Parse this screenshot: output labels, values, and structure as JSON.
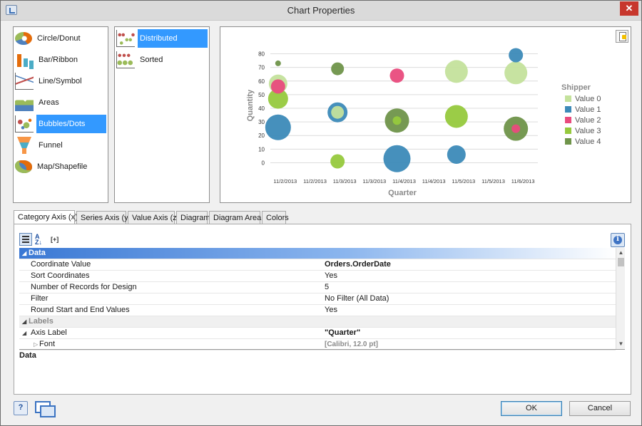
{
  "window": {
    "title": "Chart Properties"
  },
  "chart_types": [
    {
      "label": "Circle/Donut",
      "icon": "donut-chart-icon"
    },
    {
      "label": "Bar/Ribbon",
      "icon": "bar-chart-icon"
    },
    {
      "label": "Line/Symbol",
      "icon": "line-chart-icon"
    },
    {
      "label": "Areas",
      "icon": "area-chart-icon"
    },
    {
      "label": "Bubbles/Dots",
      "icon": "bubble-chart-icon",
      "selected": true
    },
    {
      "label": "Funnel",
      "icon": "funnel-chart-icon"
    },
    {
      "label": "Map/Shapefile",
      "icon": "map-icon"
    }
  ],
  "sub_types": [
    {
      "label": "Distributed",
      "icon": "distributed-dots-icon",
      "selected": true
    },
    {
      "label": "Sorted",
      "icon": "sorted-dots-icon"
    }
  ],
  "chart_data": {
    "type": "scatter",
    "subtype": "bubble",
    "xlabel": "Quarter",
    "ylabel": "Quantity",
    "x_tick_labels": [
      "11/2/2013",
      "11/2/2013",
      "11/3/2013",
      "11/3/2013",
      "11/4/2013",
      "11/4/2013",
      "11/5/2013",
      "11/5/2013",
      "11/6/2013"
    ],
    "y_ticks": [
      0,
      10,
      20,
      30,
      40,
      50,
      60,
      70,
      80
    ],
    "ylim": [
      -5,
      85
    ],
    "grid": true,
    "legend": {
      "title": "Shipper",
      "position": "right"
    },
    "series": [
      {
        "name": "Value 0",
        "color": "#c4e29c",
        "points": [
          {
            "x": 0,
            "y": 58,
            "size": 13
          },
          {
            "x": 2,
            "y": 37,
            "size": 9
          },
          {
            "x": 6,
            "y": 67,
            "size": 16
          },
          {
            "x": 8,
            "y": 66,
            "size": 16
          }
        ]
      },
      {
        "name": "Value 1",
        "color": "#3c8ab8",
        "points": [
          {
            "x": 0,
            "y": 26,
            "size": 18
          },
          {
            "x": 2,
            "y": 37,
            "size": 14
          },
          {
            "x": 4,
            "y": 3,
            "size": 19
          },
          {
            "x": 6,
            "y": 6,
            "size": 13
          },
          {
            "x": 8,
            "y": 79,
            "size": 10
          }
        ]
      },
      {
        "name": "Value 2",
        "color": "#e94b7d",
        "points": [
          {
            "x": 0,
            "y": 56,
            "size": 10
          },
          {
            "x": 4,
            "y": 64,
            "size": 10
          },
          {
            "x": 8,
            "y": 25,
            "size": 6
          }
        ]
      },
      {
        "name": "Value 3",
        "color": "#96c93d",
        "points": [
          {
            "x": 0,
            "y": 47,
            "size": 14
          },
          {
            "x": 2,
            "y": 1,
            "size": 10
          },
          {
            "x": 4,
            "y": 31,
            "size": 6
          },
          {
            "x": 6,
            "y": 34,
            "size": 16
          }
        ]
      },
      {
        "name": "Value 4",
        "color": "#6f944a",
        "points": [
          {
            "x": 0,
            "y": 73,
            "size": 4
          },
          {
            "x": 2,
            "y": 69,
            "size": 9
          },
          {
            "x": 4,
            "y": 31,
            "size": 17
          },
          {
            "x": 8,
            "y": 25,
            "size": 17
          }
        ]
      }
    ]
  },
  "tabs": [
    {
      "label": "Category Axis (x)",
      "active": true
    },
    {
      "label": "Series Axis (y)"
    },
    {
      "label": "Value Axis (z)"
    },
    {
      "label": "Diagram"
    },
    {
      "label": "Diagram Area"
    },
    {
      "label": "Colors"
    }
  ],
  "toolbar": {
    "expand_label": "[+]"
  },
  "properties": [
    {
      "kind": "category",
      "label": "Data"
    },
    {
      "kind": "prop",
      "label": "Coordinate Value",
      "value": "Orders.OrderDate",
      "style": "bold"
    },
    {
      "kind": "prop",
      "label": "Sort Coordinates",
      "value": "Yes"
    },
    {
      "kind": "prop",
      "label": "Number of Records for Design",
      "value": "5"
    },
    {
      "kind": "prop",
      "label": "Filter",
      "value": "No Filter (All Data)"
    },
    {
      "kind": "prop",
      "label": "Round Start and End Values",
      "value": "Yes"
    },
    {
      "kind": "subcategory",
      "label": "Labels"
    },
    {
      "kind": "prop",
      "label": "Axis Label",
      "value": "\"Quarter\"",
      "style": "bold",
      "expandable": true
    },
    {
      "kind": "child",
      "label": "Font",
      "value": "[Calibri, 12.0 pt]",
      "style": "muted"
    }
  ],
  "description": {
    "title": "Data"
  },
  "buttons": {
    "ok": "OK",
    "cancel": "Cancel"
  }
}
